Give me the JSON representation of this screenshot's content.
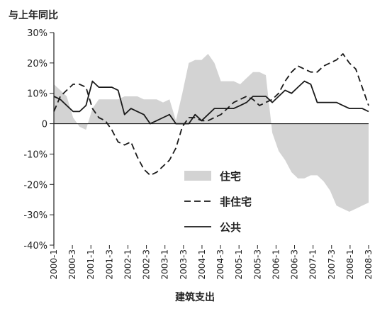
{
  "chart_data": {
    "type": "area",
    "ylabel": "与上年同比",
    "xlabel": "建筑支出",
    "ylim": [
      -40,
      30
    ],
    "y_ticks": [
      30,
      20,
      10,
      0,
      -10,
      -20,
      -30,
      -40
    ],
    "y_tick_labels": [
      "30%",
      "20%",
      "10%",
      "0",
      "-10%",
      "-20%",
      "-30%",
      "-40%"
    ],
    "x_tick_labels": [
      "2000-1",
      "2000-3",
      "2001-1",
      "2001-3",
      "2002-1",
      "2002-3",
      "2003-1",
      "2003-3",
      "2004-1",
      "2004-3",
      "2005-1",
      "2005-3",
      "2006-1",
      "2006-3",
      "2007-1",
      "2007-3",
      "2008-1",
      "2008-3"
    ],
    "legend_position": "bottom-left",
    "grid": false,
    "colors": {
      "area": "#d3d3d3",
      "line": "#1a1a1a",
      "axis": "#222222"
    },
    "series": [
      {
        "name": "住宅",
        "style": "area",
        "values": [
          13,
          11,
          9,
          2,
          -1,
          -2,
          5,
          8,
          8,
          8,
          8,
          9,
          9,
          9,
          8,
          8,
          8,
          7,
          8,
          1,
          10,
          20,
          21,
          21,
          23,
          20,
          14,
          14,
          14,
          13,
          15,
          17,
          17,
          16,
          -3,
          -9,
          -12,
          -16,
          -18,
          -18,
          -17,
          -17,
          -19,
          -22,
          -27,
          -28,
          -29,
          -28,
          -27,
          -26
        ]
      },
      {
        "name": "非住宅",
        "style": "dashed",
        "values": [
          4,
          9,
          11,
          13,
          13,
          12,
          5,
          2,
          1,
          -2,
          -6,
          -7,
          -6,
          -11,
          -15,
          -17,
          -16,
          -14,
          -12,
          -8,
          -1,
          2,
          2,
          1,
          1,
          2,
          3,
          5,
          7,
          8,
          9,
          8,
          6,
          7,
          8,
          10,
          14,
          17,
          19,
          18,
          17,
          17,
          19,
          20,
          21,
          23,
          20,
          18,
          12,
          6
        ]
      },
      {
        "name": "公共",
        "style": "solid",
        "values": [
          9,
          8,
          6,
          4,
          4,
          6,
          14,
          12,
          12,
          12,
          11,
          3,
          5,
          4,
          3,
          0,
          1,
          2,
          3,
          0,
          0,
          0,
          3,
          1,
          3,
          5,
          5,
          5,
          5,
          6,
          7,
          9,
          9,
          9,
          7,
          9,
          11,
          10,
          12,
          14,
          13,
          7,
          7,
          7,
          7,
          6,
          5,
          5,
          5,
          4
        ]
      }
    ]
  }
}
